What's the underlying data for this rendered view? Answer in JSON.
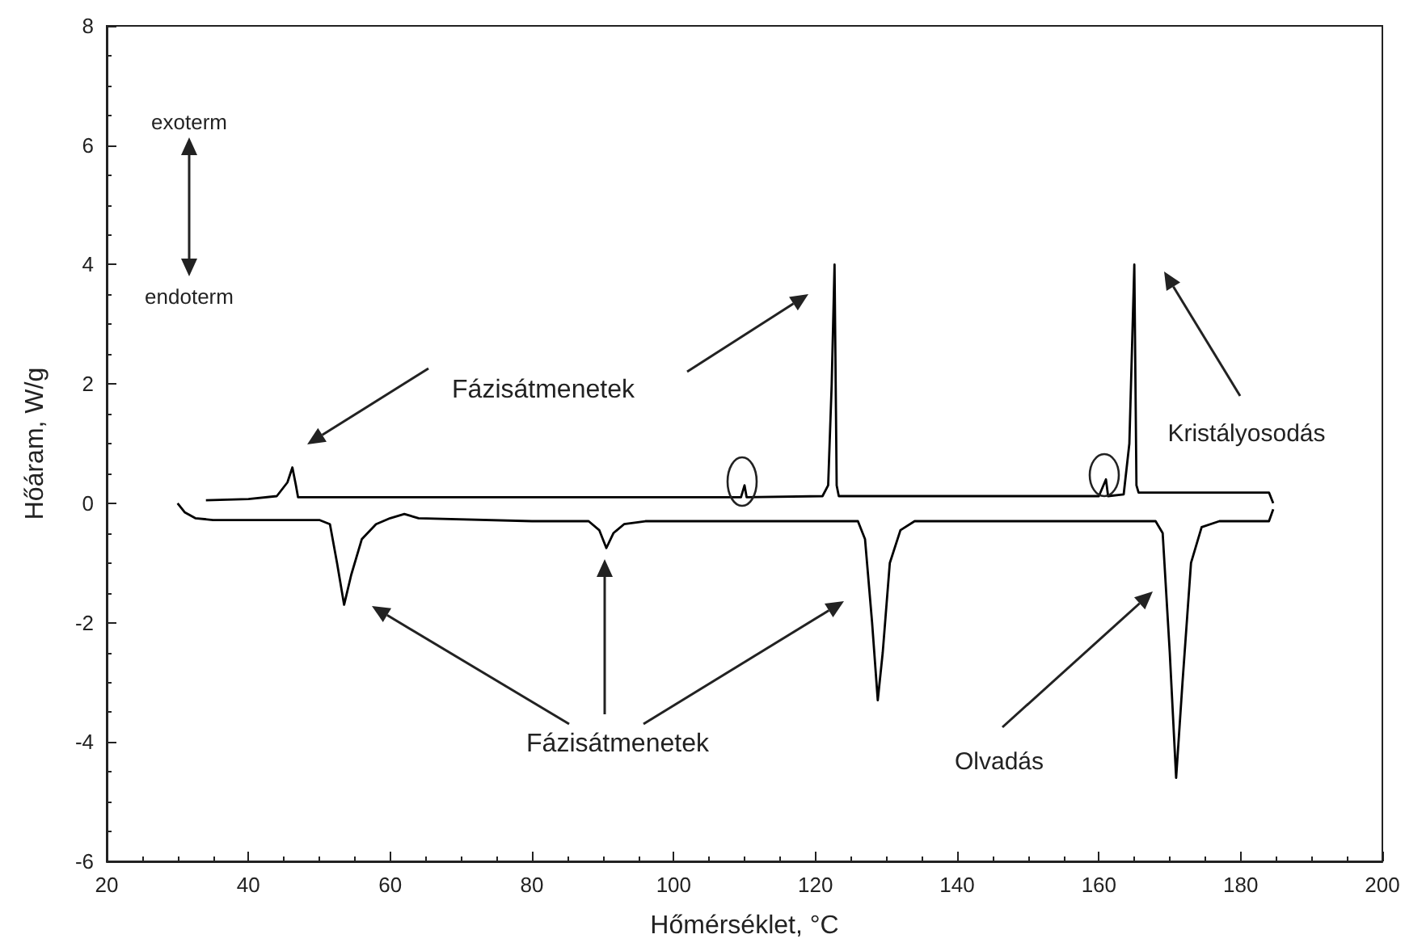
{
  "chart_data": {
    "type": "line",
    "xlabel": "Hőmérséklet, °C",
    "ylabel": "Hőáram, W/g",
    "xlim": [
      20,
      200
    ],
    "xticks": [
      20,
      40,
      60,
      80,
      100,
      120,
      140,
      160,
      180,
      200
    ],
    "ylim": [
      -6,
      8
    ],
    "yticks": [
      -6,
      -4,
      -2,
      0,
      2,
      4,
      6,
      8
    ],
    "grid": false,
    "marker": "none",
    "line_style": "solid",
    "annotations": [
      "exoterm",
      "endoterm",
      "Fázisátmenetek",
      "Kristályosodás",
      "Fázisátmenetek",
      "Olvadás"
    ],
    "series": [
      {
        "color": "#000000",
        "x": [
          34,
          40,
          44,
          45.5,
          46.2,
          46.7,
          47,
          60,
          100,
          109.5,
          110,
          110.3,
          121,
          121.8,
          122.3,
          122.7,
          123,
          123.3,
          160,
          161,
          161.3,
          163.5,
          164.3,
          165,
          165.3,
          165.6,
          184,
          184.6
        ],
        "values": [
          0.05,
          0.07,
          0.12,
          0.35,
          0.6,
          0.3,
          0.1,
          0.1,
          0.1,
          0.1,
          0.3,
          0.1,
          0.12,
          0.3,
          2,
          4,
          0.3,
          0.12,
          0.12,
          0.4,
          0.12,
          0.15,
          1,
          4,
          0.3,
          0.18,
          0.18,
          0
        ]
      },
      {
        "color": "#000000",
        "x": [
          30,
          31,
          32.5,
          35,
          50,
          51.5,
          52.5,
          53.5,
          54.5,
          56,
          58,
          60,
          62,
          64,
          80,
          88,
          89.5,
          90.5,
          91.5,
          93,
          96,
          126,
          127,
          128,
          128.8,
          129.5,
          130.5,
          132,
          134,
          168,
          169,
          170,
          170.9,
          171.8,
          173,
          174.5,
          177,
          184,
          184.6
        ],
        "values": [
          0,
          -0.15,
          -0.25,
          -0.28,
          -0.28,
          -0.35,
          -1,
          -1.7,
          -1.2,
          -0.6,
          -0.35,
          -0.25,
          -0.18,
          -0.25,
          -0.3,
          -0.3,
          -0.45,
          -0.75,
          -0.5,
          -0.35,
          -0.3,
          -0.3,
          -0.6,
          -2,
          -3.3,
          -2.5,
          -1,
          -0.45,
          -0.3,
          -0.3,
          -0.5,
          -2.5,
          -4.6,
          -3,
          -1,
          -0.4,
          -0.3,
          -0.3,
          -0.1
        ]
      }
    ]
  }
}
